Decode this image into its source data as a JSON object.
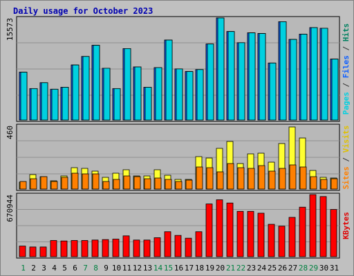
{
  "chart_data": {
    "type": "bar",
    "title": "Daily usage for October 2023",
    "categories": [
      "1",
      "2",
      "3",
      "4",
      "5",
      "6",
      "7",
      "8",
      "9",
      "10",
      "11",
      "12",
      "13",
      "14",
      "15",
      "16",
      "17",
      "18",
      "19",
      "20",
      "21",
      "22",
      "23",
      "24",
      "25",
      "26",
      "27",
      "28",
      "29",
      "30",
      "31"
    ],
    "weekend_days": [
      "1",
      "7",
      "8",
      "14",
      "15",
      "21",
      "22",
      "28",
      "29"
    ],
    "panels": [
      {
        "name": "hits-files-pages",
        "max_label": "15573",
        "ymax": 15573,
        "side_labels": [
          {
            "text": "Pages",
            "color": "#00d0e0"
          },
          {
            "text": " / ",
            "color": "#333333"
          },
          {
            "text": "Files",
            "color": "#1060ff"
          },
          {
            "text": " / ",
            "color": "#333333"
          },
          {
            "text": "Hits",
            "color": "#008060"
          }
        ],
        "series": [
          {
            "name": "Hits",
            "color": "#008060",
            "values": [
              7300,
              4800,
              5700,
              4700,
              5000,
              8400,
              9700,
              11400,
              7900,
              4800,
              10900,
              8100,
              5000,
              8000,
              12200,
              7800,
              7400,
              7700,
              11600,
              15573,
              13500,
              11800,
              13300,
              13200,
              8700,
              15000,
              12300,
              13100,
              14100,
              14000,
              9300
            ]
          },
          {
            "name": "Files",
            "color": "#1060ff",
            "values": [
              7300,
              4800,
              5700,
              4700,
              5000,
              8400,
              9700,
              11400,
              7900,
              4800,
              10900,
              8100,
              5000,
              8000,
              12200,
              7800,
              7400,
              7700,
              11600,
              15573,
              13500,
              11800,
              13300,
              13200,
              8700,
              15000,
              12300,
              13100,
              14100,
              14000,
              9300
            ]
          },
          {
            "name": "Pages",
            "color": "#00d0e0",
            "values": [
              7300,
              4800,
              5700,
              4700,
              5000,
              8400,
              9700,
              11400,
              7900,
              4800,
              10900,
              8100,
              5000,
              8000,
              12200,
              7800,
              7400,
              7700,
              11600,
              15573,
              13500,
              11800,
              13300,
              13200,
              8700,
              15000,
              12300,
              13100,
              14100,
              14000,
              9300
            ]
          }
        ]
      },
      {
        "name": "visits-sites",
        "max_label": "460",
        "ymax": 460,
        "side_labels": [
          {
            "text": "Sites",
            "color": "#ff8000"
          },
          {
            "text": " / ",
            "color": "#333333"
          },
          {
            "text": "Visits",
            "color": "#e0c000"
          }
        ],
        "series": [
          {
            "name": "Visits",
            "color": "#ffff30",
            "values": [
              50,
              105,
              90,
              60,
              95,
              155,
              150,
              130,
              85,
              115,
              140,
              95,
              95,
              140,
              100,
              70,
              70,
              235,
              225,
              295,
              345,
              185,
              255,
              260,
              195,
              330,
              450,
              370,
              135,
              85,
              80
            ]
          },
          {
            "name": "Sites",
            "color": "#ff8000",
            "values": [
              55,
              75,
              90,
              55,
              85,
              115,
              110,
              110,
              55,
              70,
              95,
              90,
              75,
              80,
              70,
              55,
              65,
              160,
              155,
              125,
              185,
              155,
              150,
              170,
              130,
              150,
              175,
              160,
              90,
              70,
              75
            ]
          }
        ]
      },
      {
        "name": "kbytes",
        "max_label": "670944",
        "ymax": 670944,
        "side_labels": [
          {
            "text": "KBytes",
            "color": "#e00000"
          }
        ],
        "series": [
          {
            "name": "KBytes",
            "color": "#ff0000",
            "values": [
              115000,
              105000,
              105000,
              175000,
              170000,
              175000,
              175000,
              180000,
              185000,
              190000,
              225000,
              180000,
              180000,
              205000,
              270000,
              230000,
              200000,
              270000,
              570000,
              615000,
              580000,
              490000,
              490000,
              470000,
              350000,
              330000,
              425000,
              535000,
              670944,
              650000,
              510000
            ]
          }
        ]
      }
    ]
  }
}
